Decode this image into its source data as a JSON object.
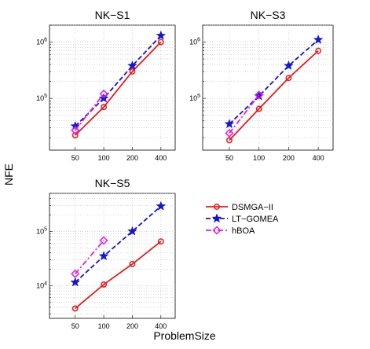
{
  "figure": {
    "ylabel": "NFE",
    "xlabel": "ProblemSize"
  },
  "legend": {
    "entries": [
      {
        "name": "DSMGA−II",
        "color": "#e8191c",
        "marker": "circle",
        "dash": "solid"
      },
      {
        "name": "LT−GOMEA",
        "color": "#1515d4",
        "marker": "star",
        "dash": "dashed"
      },
      {
        "name": "hBOA",
        "color": "#e81ae8",
        "marker": "diamond",
        "dash": "dashdot"
      }
    ]
  },
  "chart_data": [
    {
      "type": "line",
      "title": "NK−S1",
      "x": [
        50,
        100,
        200,
        400
      ],
      "x_tick_labels": [
        "50",
        "100",
        "200",
        "400"
      ],
      "y_scale": "log",
      "ylim": [
        12000,
        2000000
      ],
      "y_tick_labels": [
        "10⁵",
        "10⁶"
      ],
      "y_ticks": [
        100000,
        1000000
      ],
      "grid": true,
      "series": [
        {
          "name": "DSMGA−II",
          "x": [
            50,
            100,
            200,
            400
          ],
          "values": [
            22000,
            70000,
            300000,
            1000000
          ]
        },
        {
          "name": "LT−GOMEA",
          "x": [
            50,
            100,
            200,
            400
          ],
          "values": [
            32000,
            100000,
            380000,
            1300000
          ]
        },
        {
          "name": "hBOA",
          "x": [
            50,
            100
          ],
          "values": [
            27000,
            120000
          ]
        }
      ]
    },
    {
      "type": "line",
      "title": "NK−S3",
      "x": [
        50,
        100,
        200,
        400
      ],
      "x_tick_labels": [
        "50",
        "100",
        "200",
        "400"
      ],
      "y_scale": "log",
      "ylim": [
        12000,
        2000000
      ],
      "y_tick_labels": [
        "10⁵",
        "10⁶"
      ],
      "y_ticks": [
        100000,
        1000000
      ],
      "grid": true,
      "series": [
        {
          "name": "DSMGA−II",
          "x": [
            50,
            100,
            200,
            400
          ],
          "values": [
            18000,
            65000,
            230000,
            700000
          ]
        },
        {
          "name": "LT−GOMEA",
          "x": [
            50,
            100,
            200,
            400
          ],
          "values": [
            35000,
            110000,
            380000,
            1100000
          ]
        },
        {
          "name": "hBOA",
          "x": [
            50,
            100
          ],
          "values": [
            24000,
            115000
          ]
        }
      ]
    },
    {
      "type": "line",
      "title": "NK−S5",
      "x": [
        50,
        100,
        200,
        400
      ],
      "x_tick_labels": [
        "50",
        "100",
        "200",
        "400"
      ],
      "y_scale": "log",
      "ylim": [
        2500,
        500000
      ],
      "y_tick_labels": [
        "10⁴",
        "10⁵"
      ],
      "y_ticks": [
        10000,
        100000
      ],
      "grid": true,
      "series": [
        {
          "name": "DSMGA−II",
          "x": [
            50,
            100,
            200,
            400
          ],
          "values": [
            3800,
            10500,
            25000,
            65000
          ]
        },
        {
          "name": "LT−GOMEA",
          "x": [
            50,
            100,
            200,
            400
          ],
          "values": [
            11500,
            35000,
            100000,
            290000
          ]
        },
        {
          "name": "hBOA",
          "x": [
            50,
            100
          ],
          "values": [
            16500,
            68000
          ]
        }
      ]
    }
  ]
}
